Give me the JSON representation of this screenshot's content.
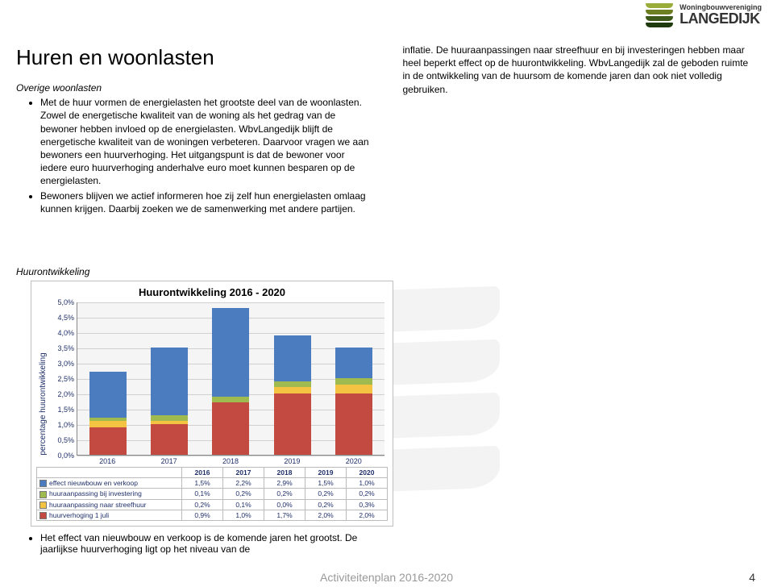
{
  "logo": {
    "line1": "Woningbouwvereniging",
    "line2": "LANGEDIJK",
    "stripe_colors": [
      "#9aad3a",
      "#6d7f22",
      "#3e5a1a",
      "#1e3a0e"
    ]
  },
  "title": "Huren en woonlasten",
  "left": {
    "section_label": "Overige woonlasten",
    "bullets": [
      "Met de huur vormen de energielasten het grootste deel van de woonlasten. Zowel de energetische kwaliteit van de woning als het gedrag van de bewoner hebben invloed op de energielasten. WbvLangedijk blijft de energetische kwaliteit van de woningen verbeteren. Daarvoor vragen we aan bewoners een huurverhoging. Het uitgangspunt is dat de bewoner voor iedere euro huurverhoging anderhalve euro moet kunnen besparen op de energielasten.",
      "Bewoners blijven we actief informeren hoe zij zelf hun energielasten omlaag kunnen krijgen. Daarbij zoeken we de samenwerking met andere partijen."
    ]
  },
  "right": {
    "paragraph": "inflatie. De huuraanpassingen naar streefhuur en bij investeringen hebben maar heel beperkt effect op de huurontwikkeling. WbvLangedijk zal de geboden ruimte in de ontwikkeling van de huursom de komende jaren dan ook niet volledig gebruiken."
  },
  "chart_section_label": "Huurontwikkeling",
  "chart": {
    "type": "stacked-bar",
    "title": "Huurontwikkeling  2016 - 2020",
    "ylabel": "percentage huurontwikkeling",
    "ylim": [
      0,
      5.0
    ],
    "ytick_step": 0.5,
    "categories": [
      "2016",
      "2017",
      "2018",
      "2019",
      "2020"
    ],
    "series": [
      {
        "name": "effect nieuwbouw en verkoop",
        "color": "#4a7cbf",
        "values": [
          1.5,
          2.2,
          2.9,
          1.5,
          1.0
        ]
      },
      {
        "name": "huuraanpassing bij investering",
        "color": "#9fbb50",
        "values": [
          0.1,
          0.2,
          0.2,
          0.2,
          0.2
        ]
      },
      {
        "name": "huuraanpassing naar streefhuur",
        "color": "#f5c342",
        "values": [
          0.2,
          0.1,
          0.0,
          0.2,
          0.3
        ]
      },
      {
        "name": "huurverhoging 1 juli",
        "color": "#c24a40",
        "values": [
          0.9,
          1.0,
          1.7,
          2.0,
          2.0
        ]
      }
    ],
    "grid_color": "#d0d0d0",
    "background_color": "#ffffff",
    "label_color": "#20306a",
    "tick_fontsize": 9,
    "title_fontsize": 13
  },
  "bottom_bullet": "Het effect van nieuwbouw en verkoop is de komende jaren het grootst. De jaarlijkse huurverhoging ligt op het niveau van de",
  "footer": "Activiteitenplan 2016-2020",
  "page_number": "4"
}
